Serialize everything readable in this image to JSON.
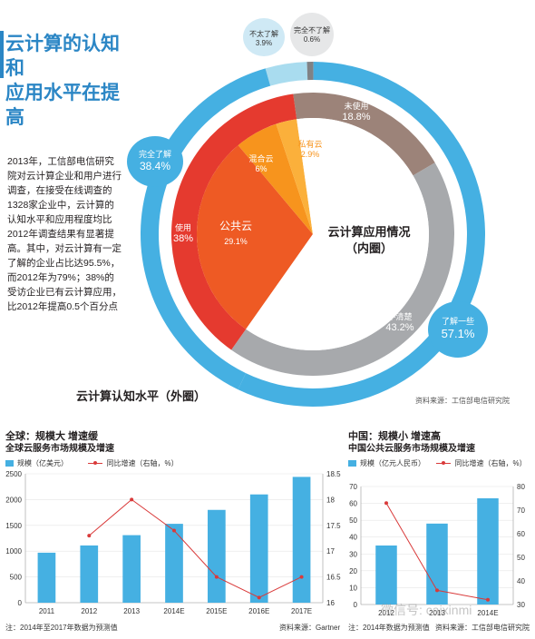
{
  "page": {
    "title_line1": "云计算的认知和",
    "title_line2": "应用水平在提高",
    "body": "2013年，工信部电信研究院对云计算企业和用户进行调查，在接受在线调查的1328家企业中，云计算的认知水平和应用程度均比2012年调查结果有显著提高。其中，对云计算有一定了解的企业占比达95.5%，而2012年为79%；38%的受访企业已有云计算应用，比2012年提高0.5个百分点",
    "outer_caption": "云计算认知水平（外圈）",
    "inner_caption_line1": "云计算应用情况",
    "inner_caption_line2": "（内圈）",
    "donut_source": "资料来源：工信部电信研究院",
    "watermark": "微信号: caixinmi"
  },
  "colors": {
    "blue": "#45b0e2",
    "light_blue": "#a9dcef",
    "dark_gray": "#808285",
    "brown": "#9c8379",
    "gray": "#a7a9ac",
    "red": "#e53a2f",
    "orange_red": "#ee5a24",
    "orange": "#f7941d",
    "yellow_orange": "#fbb03b",
    "line_red": "#d93a3a"
  },
  "chart_data": [
    {
      "type": "pie",
      "title": "云计算认知水平（外圈）",
      "slices": [
        {
          "label": "了解一些",
          "value": 57.1,
          "color": "#45b0e2"
        },
        {
          "label": "完全了解",
          "value": 38.4,
          "color": "#45b0e2"
        },
        {
          "label": "不太了解",
          "value": 3.9,
          "color": "#a9dcef"
        },
        {
          "label": "完全不了解",
          "value": 0.6,
          "color": "#808285"
        }
      ]
    },
    {
      "type": "pie",
      "title": "云计算应用情况（内圈）",
      "slices": [
        {
          "label": "未使用",
          "value": 18.8,
          "color": "#9c8379"
        },
        {
          "label": "不清楚",
          "value": 43.2,
          "color": "#a7a9ac"
        },
        {
          "label": "使用",
          "value": 38,
          "color": "#e53a2f"
        }
      ],
      "sub_slices": [
        {
          "label": "公共云",
          "value": 29.1,
          "color": "#ee5a24"
        },
        {
          "label": "混合云",
          "value": 6,
          "color": "#f7941d"
        },
        {
          "label": "私有云",
          "value": 2.9,
          "color": "#fbb03b"
        }
      ]
    },
    {
      "type": "bar",
      "title": "全球：规模大 增速缓",
      "subtitle": "全球云服务市场规模及增速",
      "categories": [
        "2011",
        "2012",
        "2013",
        "2014E",
        "2015E",
        "2016E",
        "2017E"
      ],
      "series": [
        {
          "name": "规模（亿美元）",
          "type": "bar",
          "values": [
            970,
            1110,
            1310,
            1530,
            1800,
            2100,
            2440
          ]
        },
        {
          "name": "同比增速（右轴，%）",
          "type": "line",
          "axis": "right",
          "values": [
            null,
            17.3,
            18.0,
            17.4,
            16.5,
            16.1,
            16.5
          ]
        }
      ],
      "ylim_left": [
        0,
        2500
      ],
      "yticks_left": [
        0,
        500,
        1000,
        1500,
        2000,
        2500
      ],
      "ylim_right": [
        16,
        18.5
      ],
      "yticks_right": [
        16,
        16.5,
        17,
        17.5,
        18,
        18.5
      ],
      "note": "注：2014年至2017年数据为预测值",
      "source": "资料来源：Gartner"
    },
    {
      "type": "bar",
      "title": "中国：规模小 增速高",
      "subtitle": "中国公共云服务市场规模及增速",
      "categories": [
        "2012",
        "2013",
        "2014E"
      ],
      "series": [
        {
          "name": "规模（亿元人民币）",
          "type": "bar",
          "values": [
            35,
            48,
            63
          ]
        },
        {
          "name": "同比增速（右轴，%）",
          "type": "line",
          "axis": "right",
          "values": [
            73,
            36,
            32
          ]
        }
      ],
      "ylim_left": [
        0,
        70
      ],
      "yticks_left": [
        0,
        10,
        20,
        30,
        40,
        50,
        60,
        70
      ],
      "ylim_right": [
        30,
        80
      ],
      "yticks_right": [
        30,
        40,
        50,
        60,
        70,
        80
      ],
      "note": "注：2014年数据为预测值",
      "source": "资料来源：工信部电信研究院"
    }
  ]
}
